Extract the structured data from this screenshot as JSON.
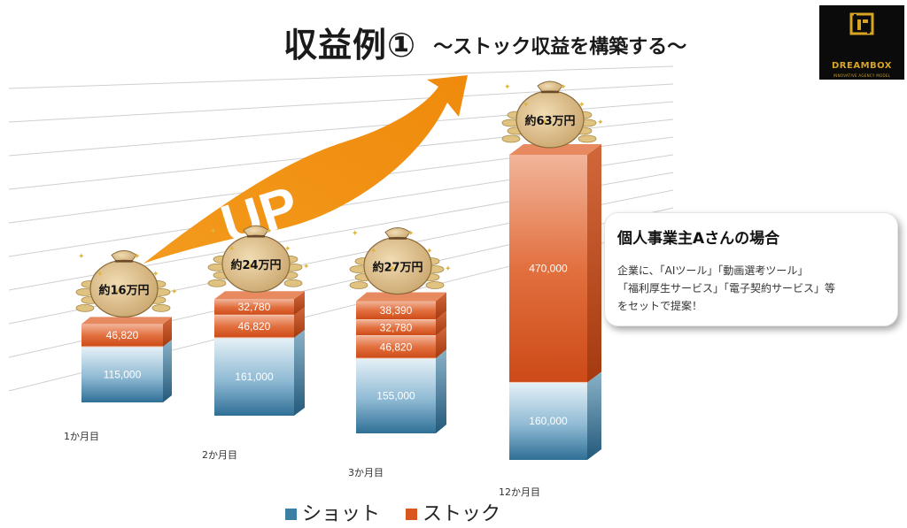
{
  "title": {
    "main": "収益例①",
    "sub": "～ストック収益を構築する～"
  },
  "logo": {
    "name": "DREAMBOX",
    "tagline": "INNOVATIVE AGENCY MODEL"
  },
  "arrow_label": "UP",
  "card": {
    "title": "個人事業主Aさんの場合",
    "lines": [
      "企業に、「AIツール」「動画選考ツール」",
      "「福利厚生サービス」「電子契約サービス」等",
      "をセットで提案！"
    ]
  },
  "colors": {
    "shot": "#3d7ea3",
    "stock": "#d9561f",
    "arrow": "#f08a10",
    "money_bag": "#d6b985",
    "coin": "#e0c380"
  },
  "chart_data": {
    "type": "bar",
    "stacked": true,
    "three_d": true,
    "grid": true,
    "legend_position": "bottom",
    "categories": [
      "1か月目",
      "2か月目",
      "3か月目",
      "12か月目"
    ],
    "series": [
      {
        "name": "ショット",
        "values": [
          115000,
          161000,
          155000,
          160000
        ]
      },
      {
        "name": "ストック",
        "segments": [
          [
            "46,820"
          ],
          [
            "46,820",
            "32,780"
          ],
          [
            "46,820",
            "32,780",
            "38,390"
          ],
          [
            "470,000"
          ]
        ],
        "values": [
          46820,
          79600,
          117990,
          470000
        ]
      }
    ],
    "shot_labels": [
      "115,000",
      "161,000",
      "155,000",
      "160,000"
    ],
    "segment_values": [
      [
        46820
      ],
      [
        46820,
        32780
      ],
      [
        46820,
        32780,
        38390
      ],
      [
        470000
      ]
    ],
    "totals": [
      "約16万円",
      "約24万円",
      "約27万円",
      "約63万円"
    ]
  }
}
